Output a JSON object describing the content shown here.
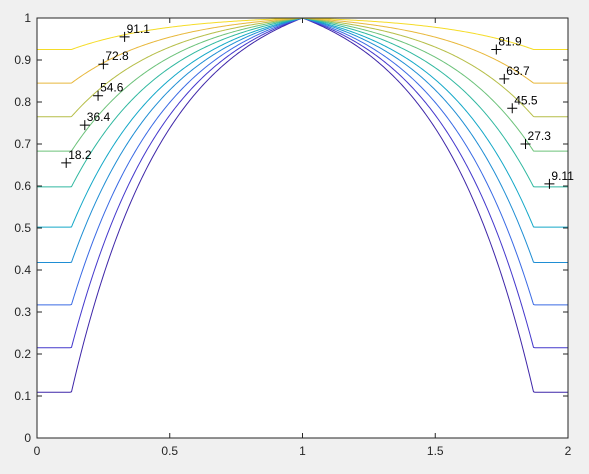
{
  "chart_data": {
    "type": "contour",
    "title": "",
    "xlabel": "",
    "ylabel": "",
    "xlim": [
      0,
      2
    ],
    "ylim": [
      0,
      1
    ],
    "xticks": [
      "0",
      "0.5",
      "1",
      "1.5",
      "2"
    ],
    "yticks": [
      "0",
      "0.1",
      "0.2",
      "0.3",
      "0.4",
      "0.5",
      "0.6",
      "0.7",
      "0.8",
      "0.9",
      "1"
    ],
    "grid": false,
    "colormap": "parula",
    "levels": [
      {
        "value": 9.11,
        "label": "9.11",
        "color": "#3e26a8",
        "minY": 0.109,
        "labelAt": [
          1.93,
          0.605
        ]
      },
      {
        "value": 18.2,
        "label": "18.2",
        "color": "#4438cc",
        "minY": 0.215,
        "labelAt": [
          0.11,
          0.655
        ]
      },
      {
        "value": 27.3,
        "label": "27.3",
        "color": "#3a6ae4",
        "minY": 0.317,
        "labelAt": [
          1.84,
          0.7
        ]
      },
      {
        "value": 36.4,
        "label": "36.4",
        "color": "#1f8ed4",
        "minY": 0.418,
        "labelAt": [
          0.18,
          0.745
        ]
      },
      {
        "value": 45.5,
        "label": "45.5",
        "color": "#14a8c8",
        "minY": 0.502,
        "labelAt": [
          1.79,
          0.785
        ]
      },
      {
        "value": 54.6,
        "label": "54.6",
        "color": "#30b8a0",
        "minY": 0.598,
        "labelAt": [
          0.23,
          0.815
        ]
      },
      {
        "value": 63.7,
        "label": "63.7",
        "color": "#6cc27a",
        "minY": 0.683,
        "labelAt": [
          1.76,
          0.855
        ]
      },
      {
        "value": 72.8,
        "label": "72.8",
        "color": "#b6be48",
        "minY": 0.765,
        "labelAt": [
          0.25,
          0.89
        ]
      },
      {
        "value": 81.9,
        "label": "81.9",
        "color": "#e8b83c",
        "minY": 0.845,
        "labelAt": [
          1.73,
          0.925
        ]
      },
      {
        "value": 91.1,
        "label": "91.1",
        "color": "#f5dc28",
        "minY": 0.925,
        "labelAt": [
          0.33,
          0.955
        ]
      }
    ]
  }
}
